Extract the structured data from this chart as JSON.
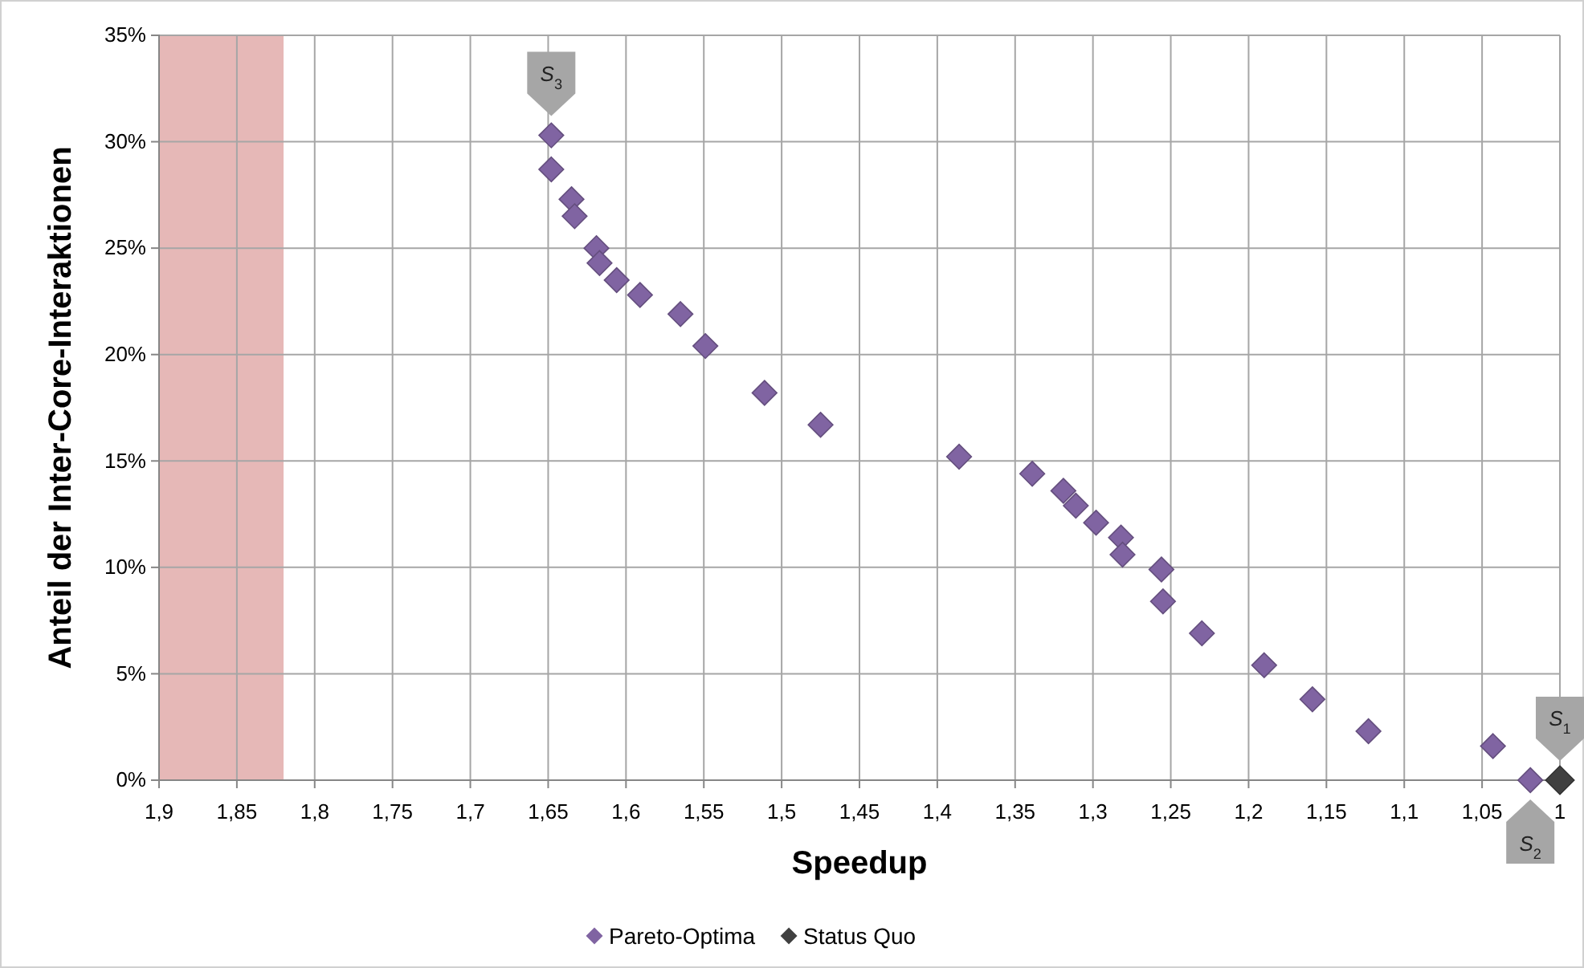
{
  "chart_data": {
    "type": "scatter",
    "xlabel": "Speedup",
    "ylabel": "Anteil der Inter-Core-Interaktionen",
    "xlim": [
      1.9,
      1
    ],
    "xticks": [
      {
        "value": 1.9,
        "label": "1,9"
      },
      {
        "value": 1.85,
        "label": "1,85"
      },
      {
        "value": 1.8,
        "label": "1,8"
      },
      {
        "value": 1.75,
        "label": "1,75"
      },
      {
        "value": 1.7,
        "label": "1,7"
      },
      {
        "value": 1.65,
        "label": "1,65"
      },
      {
        "value": 1.6,
        "label": "1,6"
      },
      {
        "value": 1.55,
        "label": "1,55"
      },
      {
        "value": 1.5,
        "label": "1,5"
      },
      {
        "value": 1.45,
        "label": "1,45"
      },
      {
        "value": 1.4,
        "label": "1,4"
      },
      {
        "value": 1.35,
        "label": "1,35"
      },
      {
        "value": 1.3,
        "label": "1,3"
      },
      {
        "value": 1.25,
        "label": "1,25"
      },
      {
        "value": 1.2,
        "label": "1,2"
      },
      {
        "value": 1.15,
        "label": "1,15"
      },
      {
        "value": 1.1,
        "label": "1,1"
      },
      {
        "value": 1.05,
        "label": "1,05"
      },
      1
    ],
    "ylim": [
      0,
      35
    ],
    "yticks": [
      {
        "value": 0,
        "label": "0%"
      },
      {
        "value": 5,
        "label": "5%"
      },
      {
        "value": 10,
        "label": "10%"
      },
      {
        "value": 15,
        "label": "15%"
      },
      {
        "value": 20,
        "label": "20%"
      },
      {
        "value": 25,
        "label": "25%"
      },
      {
        "value": 30,
        "label": "30%"
      },
      {
        "value": 35,
        "label": "35%"
      }
    ],
    "grid": true,
    "legend": "bottom",
    "marker": "diamond",
    "bands": [
      {
        "axis": "x",
        "from": 1.9,
        "to": 1.82,
        "color": "#e6b8b7"
      }
    ],
    "series": [
      {
        "name": "Pareto-Optima",
        "color": "#8064a2",
        "x": [
          1.648,
          1.648,
          1.635,
          1.633,
          1.619,
          1.617,
          1.606,
          1.591,
          1.565,
          1.549,
          1.511,
          1.475,
          1.386,
          1.339,
          1.319,
          1.311,
          1.298,
          1.282,
          1.281,
          1.256,
          1.255,
          1.23,
          1.19,
          1.159,
          1.123,
          1.043,
          1.019
        ],
        "values": [
          30.3,
          28.7,
          27.3,
          26.5,
          25,
          24.3,
          23.5,
          22.8,
          21.9,
          20.4,
          18.2,
          16.7,
          15.2,
          14.4,
          13.6,
          12.9,
          12.1,
          11.4,
          10.6,
          9.9,
          8.4,
          6.9,
          5.4,
          3.8,
          2.3,
          1.6,
          0
        ]
      },
      {
        "name": "Status Quo",
        "color": "#404040",
        "x": [
          1
        ],
        "values": [
          0
        ]
      }
    ],
    "annotations": [
      {
        "text": "S$_{3}$",
        "x": 1.648,
        "y": 30.3
      },
      {
        "text": "S$_{1}$",
        "x": 1,
        "y": 0
      },
      {
        "text": "S$_{2}$",
        "x": 1.019,
        "y": 0
      }
    ]
  }
}
